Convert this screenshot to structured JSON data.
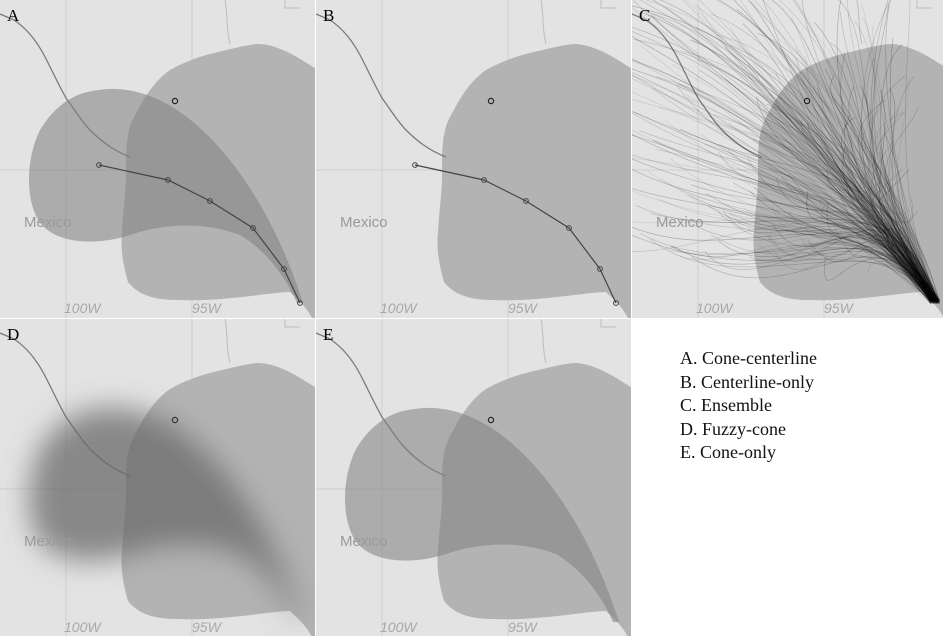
{
  "panels": [
    {
      "letter": "A",
      "country_label": "Mexico",
      "lon_labels": [
        "100W",
        "95W"
      ],
      "layers": [
        "cone",
        "centerline"
      ]
    },
    {
      "letter": "B",
      "country_label": "Mexico",
      "lon_labels": [
        "100W",
        "95W"
      ],
      "layers": [
        "centerline"
      ]
    },
    {
      "letter": "C",
      "country_label": "Mexico",
      "lon_labels": [
        "100W",
        "95W"
      ],
      "layers": [
        "ensemble"
      ]
    },
    {
      "letter": "D",
      "country_label": "Mexico",
      "lon_labels": [
        "100W",
        "95W"
      ],
      "layers": [
        "fuzzy-cone"
      ]
    },
    {
      "letter": "E",
      "country_label": "Mexico",
      "lon_labels": [
        "100W",
        "95W"
      ],
      "layers": [
        "cone"
      ]
    }
  ],
  "legend": [
    "A. Cone-centerline",
    "B. Centerline-only",
    "C. Ensemble",
    "D. Fuzzy-cone",
    "E. Cone-only"
  ],
  "colors": {
    "land": "#e3e3e3",
    "water": "#b3b3b3",
    "cone": "#7f7f7f",
    "track": "#444444",
    "border": "#7a7a7a"
  }
}
